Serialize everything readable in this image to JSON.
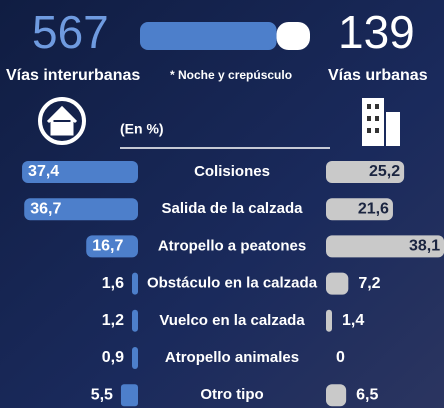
{
  "chart_data": {
    "type": "diverging_bar",
    "subtitle": "* Noche y crepúsculo",
    "unit": "(En %)",
    "categories": [
      "Colisiones",
      "Salida de la calzada",
      "Atropello a peatones",
      "Obstáculo en la calzada",
      "Vuelco en la calzada",
      "Atropello animales",
      "Otro tipo"
    ],
    "series": [
      {
        "name": "Vías interurbanas",
        "total": 567,
        "color": "#4d7fcb",
        "values": [
          37.4,
          36.7,
          16.7,
          1.6,
          1.2,
          0.9,
          5.5
        ],
        "value_labels": [
          "37,4",
          "36,7",
          "16,7",
          "1,6",
          "1,2",
          "0,9",
          "5,5"
        ]
      },
      {
        "name": "Vías urbanas",
        "total": 139,
        "color": "#c9c9c9",
        "values": [
          25.2,
          21.6,
          38.1,
          7.2,
          1.4,
          0,
          6.5
        ],
        "value_labels": [
          "25,2",
          "21,6",
          "38,1",
          "7,2",
          "1,4",
          "0",
          "6,5"
        ]
      }
    ]
  }
}
